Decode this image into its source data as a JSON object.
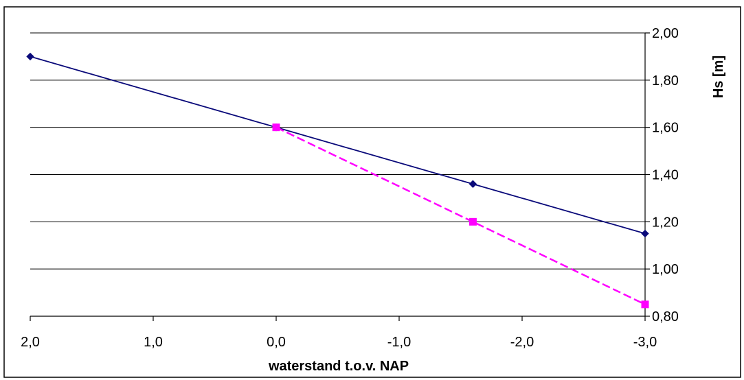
{
  "chart_data": {
    "type": "line",
    "title": "",
    "xlabel": "waterstand t.o.v. NAP",
    "ylabel": "Hs [m]",
    "x_ticks": [
      "2,0",
      "1,0",
      "0,0",
      "-1,0",
      "-2,0",
      "-3,0"
    ],
    "x_tick_values": [
      2.0,
      1.0,
      0.0,
      -1.0,
      -2.0,
      -3.0
    ],
    "y_ticks": [
      "0,80",
      "1,00",
      "1,20",
      "1,40",
      "1,60",
      "1,80",
      "2,00"
    ],
    "y_tick_values": [
      0.8,
      1.0,
      1.2,
      1.4,
      1.6,
      1.8,
      2.0
    ],
    "xlim": [
      2.0,
      -3.0
    ],
    "ylim": [
      0.8,
      2.0
    ],
    "x_reversed": true,
    "y_axis_side": "right",
    "grid": "horizontal",
    "legend": "none",
    "series": [
      {
        "x": [
          2.0,
          0.0,
          -1.6,
          -3.0
        ],
        "y": [
          1.9,
          1.6,
          1.36,
          1.15
        ],
        "color": "#0a0a7a",
        "marker": "diamond",
        "line_style": "solid"
      },
      {
        "x": [
          0.0,
          -1.6,
          -3.0
        ],
        "y": [
          1.6,
          1.2,
          0.85
        ],
        "color": "#ff00ff",
        "marker": "square",
        "line_style": "dashed"
      }
    ]
  }
}
